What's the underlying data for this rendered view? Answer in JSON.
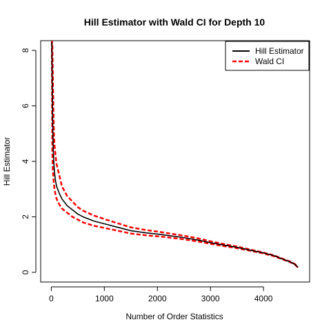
{
  "chart_data": {
    "type": "line",
    "title": "Hill Estimator with Wald CI for Depth 10",
    "xlabel": "Number of Order Statistics",
    "ylabel": "Hill Estimator",
    "xlim": [
      -200,
      4870
    ],
    "ylim": [
      -0.35,
      8.35
    ],
    "xticks": [
      0,
      1000,
      2000,
      3000,
      4000
    ],
    "yticks": [
      0,
      2,
      4,
      6,
      8
    ],
    "grid": false,
    "legend_position": "top-right",
    "legend": [
      "Hill Estimator",
      "Wald CI"
    ],
    "series": [
      {
        "name": "Hill Estimator",
        "color": "#000000",
        "style": "solid",
        "x": [
          10,
          20,
          30,
          40,
          50,
          60,
          80,
          100,
          150,
          200,
          300,
          400,
          500,
          600,
          800,
          1000,
          1200,
          1500,
          1800,
          2000,
          2200,
          2500,
          2800,
          3000,
          3200,
          3500,
          3800,
          4000,
          4200,
          4400,
          4500,
          4600,
          4650
        ],
        "y": [
          8.3,
          6.2,
          5.0,
          4.3,
          3.9,
          3.6,
          3.3,
          3.1,
          2.85,
          2.65,
          2.4,
          2.25,
          2.1,
          2.0,
          1.85,
          1.75,
          1.65,
          1.5,
          1.42,
          1.38,
          1.33,
          1.25,
          1.15,
          1.07,
          1.0,
          0.9,
          0.78,
          0.7,
          0.6,
          0.45,
          0.38,
          0.28,
          0.18
        ]
      },
      {
        "name": "Wald CI",
        "color": "#ff0000",
        "style": "dashed",
        "x": [
          10,
          20,
          30,
          40,
          50,
          60,
          80,
          100,
          150,
          200,
          300,
          400,
          500,
          600,
          800,
          1000,
          1200,
          1500,
          1800,
          2000,
          2200,
          2500,
          2800,
          3000,
          3200,
          3500,
          3800,
          4000,
          4200,
          4400,
          4500,
          4600,
          4650
        ],
        "y": [
          8.4,
          8.2,
          7.0,
          5.8,
          5.0,
          4.6,
          4.2,
          3.9,
          3.5,
          3.1,
          2.75,
          2.55,
          2.35,
          2.22,
          2.05,
          1.92,
          1.8,
          1.62,
          1.52,
          1.47,
          1.41,
          1.32,
          1.21,
          1.12,
          1.04,
          0.93,
          0.8,
          0.71,
          0.61,
          0.46,
          0.39,
          0.29,
          0.18
        ]
      },
      {
        "name": "Wald CI lower",
        "color": "#ff0000",
        "style": "dashed",
        "x": [
          10,
          20,
          30,
          40,
          50,
          60,
          80,
          100,
          150,
          200,
          300,
          400,
          500,
          600,
          800,
          1000,
          1200,
          1500,
          1800,
          2000,
          2200,
          2500,
          2800,
          3000,
          3200,
          3500,
          3800,
          4000,
          4200,
          4400,
          4500,
          4600,
          4650
        ],
        "y": [
          8.3,
          4.3,
          3.7,
          3.4,
          3.2,
          3.0,
          2.8,
          2.65,
          2.45,
          2.3,
          2.15,
          2.0,
          1.9,
          1.8,
          1.68,
          1.6,
          1.52,
          1.4,
          1.33,
          1.3,
          1.26,
          1.19,
          1.1,
          1.03,
          0.96,
          0.87,
          0.76,
          0.68,
          0.58,
          0.44,
          0.37,
          0.27,
          0.16
        ]
      }
    ]
  }
}
